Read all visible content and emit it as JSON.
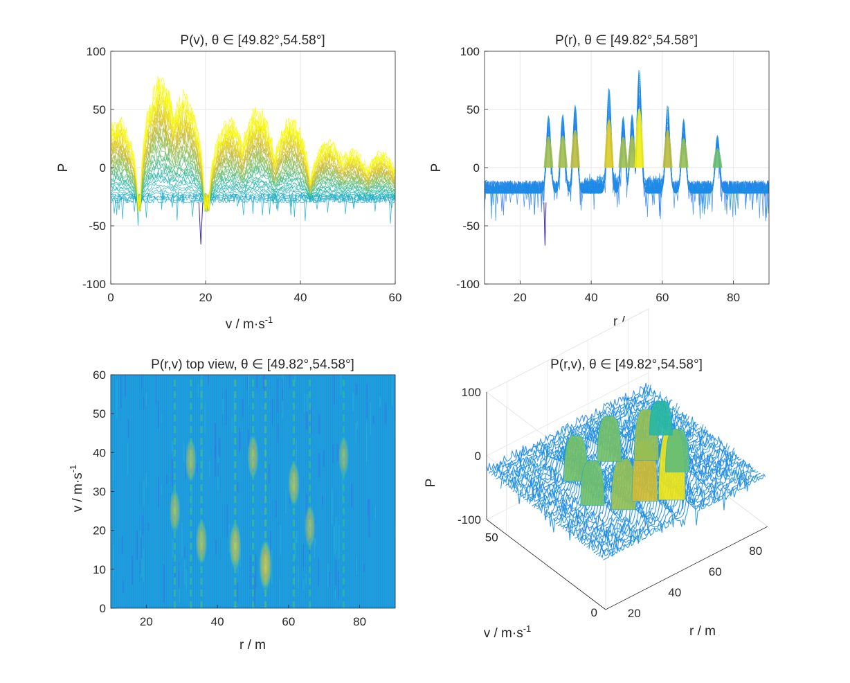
{
  "figure": {
    "panels": [
      {
        "id": "pv",
        "title": "P(v), θ ∈ [49.82°,54.58°]",
        "xlabel": "v / m·s",
        "xlabel_sup": "-1",
        "ylabel": "P"
      },
      {
        "id": "pr",
        "title": "P(r), θ ∈ [49.82°,54.58°]",
        "xlabel": "r / m",
        "ylabel": "P"
      },
      {
        "id": "top",
        "title": "P(r,v) top view, θ ∈ [49.82°,54.58°]",
        "xlabel": "r / m",
        "ylabel": "v / m·s",
        "ylabel_sup": "-1"
      },
      {
        "id": "surf",
        "title": "P(r,v), θ ∈ [49.82°,54.58°]",
        "xlabel": "r / m",
        "ylabel": "v / m·s",
        "ylabel_sup": "-1",
        "zlabel": "P"
      }
    ]
  },
  "chart_data": [
    {
      "type": "line",
      "panel": "pv",
      "title": "P(v), θ ∈ [49.82°,54.58°]",
      "xlabel": "v / m·s-1",
      "ylabel": "P",
      "xlim": [
        0,
        60
      ],
      "ylim": [
        -100,
        100
      ],
      "xticks": [
        "0",
        "20",
        "40",
        "60"
      ],
      "yticks": [
        "-100",
        "-50",
        "0",
        "50",
        "100"
      ],
      "grid": true,
      "colormap": "parula",
      "peaks": [
        {
          "v": 1.5,
          "P": 47
        },
        {
          "v": 10.5,
          "P": 84
        },
        {
          "v": 15.5,
          "P": 68
        },
        {
          "v": 25,
          "P": 45
        },
        {
          "v": 31,
          "P": 55
        },
        {
          "v": 38,
          "P": 46
        },
        {
          "v": 46,
          "P": 27
        },
        {
          "v": 51,
          "P": 18
        },
        {
          "v": 57,
          "P": 16
        }
      ],
      "floor": -30,
      "minimum": {
        "v": 19,
        "P": -66
      }
    },
    {
      "type": "line",
      "panel": "pr",
      "title": "P(r), θ ∈ [49.82°,54.58°]",
      "xlabel": "r / m",
      "ylabel": "P",
      "xlim": [
        10,
        90
      ],
      "ylim": [
        -100,
        100
      ],
      "xticks": [
        "20",
        "40",
        "60",
        "80"
      ],
      "yticks": [
        "-100",
        "-50",
        "0",
        "50",
        "100"
      ],
      "grid": true,
      "colormap": "parula",
      "peaks": [
        {
          "r": 28,
          "P": 45
        },
        {
          "r": 32,
          "P": 46
        },
        {
          "r": 35.5,
          "P": 54
        },
        {
          "r": 45,
          "P": 69
        },
        {
          "r": 49,
          "P": 44
        },
        {
          "r": 51.5,
          "P": 46
        },
        {
          "r": 53.5,
          "P": 85
        },
        {
          "r": 61.5,
          "P": 54
        },
        {
          "r": 66,
          "P": 42
        },
        {
          "r": 75.5,
          "P": 28
        }
      ],
      "floor": -22,
      "minimum": {
        "r": 27,
        "P": -67
      }
    },
    {
      "type": "heatmap",
      "panel": "top",
      "title": "P(r,v) top view, θ ∈ [49.82°,54.58°]",
      "xlabel": "r / m",
      "ylabel": "v / m·s-1",
      "xlim": [
        10,
        90
      ],
      "ylim": [
        0,
        60
      ],
      "xticks": [
        "20",
        "40",
        "60",
        "80"
      ],
      "yticks": [
        "0",
        "10",
        "20",
        "30",
        "40",
        "50",
        "60"
      ],
      "colormap": "parula",
      "peaks": [
        {
          "r": 32.5,
          "v": 38,
          "P": 46
        },
        {
          "r": 28,
          "v": 25,
          "P": 45
        },
        {
          "r": 35.5,
          "v": 17,
          "P": 54
        },
        {
          "r": 45,
          "v": 16,
          "P": 69
        },
        {
          "r": 53.5,
          "v": 11,
          "P": 85
        },
        {
          "r": 50,
          "v": 39,
          "P": 46
        },
        {
          "r": 61.5,
          "v": 32,
          "P": 54
        },
        {
          "r": 66,
          "v": 21,
          "P": 42
        },
        {
          "r": 75.5,
          "v": 39,
          "P": 28
        }
      ]
    },
    {
      "type": "surface",
      "panel": "surf",
      "title": "P(r,v), θ ∈ [49.82°,54.58°]",
      "xlabel": "r / m",
      "ylabel": "v / m·s-1",
      "zlabel": "P",
      "xlim": [
        10,
        90
      ],
      "ylim": [
        0,
        60
      ],
      "zlim": [
        -100,
        100
      ],
      "xticks": [
        "20",
        "40",
        "60",
        "80"
      ],
      "yticks": [
        "0",
        "50"
      ],
      "zticks": [
        "-100",
        "0",
        "100"
      ],
      "colormap": "parula"
    }
  ]
}
